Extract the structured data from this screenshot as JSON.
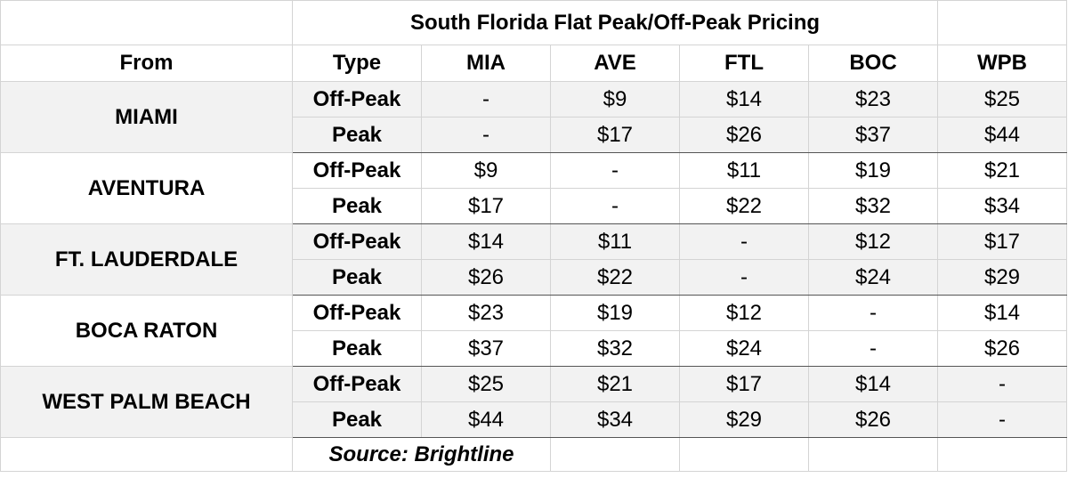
{
  "table": {
    "title": "South Florida Flat Peak/Off-Peak Pricing",
    "headers": [
      "From",
      "Type",
      "MIA",
      "AVE",
      "FTL",
      "BOC",
      "WPB"
    ],
    "groups": [
      {
        "from": "MIAMI",
        "rows": [
          {
            "type": "Off-Peak",
            "values": [
              "-",
              "$9",
              "$14",
              "$23",
              "$25"
            ]
          },
          {
            "type": "Peak",
            "values": [
              "-",
              "$17",
              "$26",
              "$37",
              "$44"
            ]
          }
        ]
      },
      {
        "from": "AVENTURA",
        "rows": [
          {
            "type": "Off-Peak",
            "values": [
              "$9",
              "-",
              "$11",
              "$19",
              "$21"
            ]
          },
          {
            "type": "Peak",
            "values": [
              "$17",
              "-",
              "$22",
              "$32",
              "$34"
            ]
          }
        ]
      },
      {
        "from": "FT. LAUDERDALE",
        "rows": [
          {
            "type": "Off-Peak",
            "values": [
              "$14",
              "$11",
              "-",
              "$12",
              "$17"
            ]
          },
          {
            "type": "Peak",
            "values": [
              "$26",
              "$22",
              "-",
              "$24",
              "$29"
            ]
          }
        ]
      },
      {
        "from": "BOCA RATON",
        "rows": [
          {
            "type": "Off-Peak",
            "values": [
              "$23",
              "$19",
              "$12",
              "-",
              "$14"
            ]
          },
          {
            "type": "Peak",
            "values": [
              "$37",
              "$32",
              "$24",
              "-",
              "$26"
            ]
          }
        ]
      },
      {
        "from": "WEST PALM BEACH",
        "rows": [
          {
            "type": "Off-Peak",
            "values": [
              "$25",
              "$21",
              "$17",
              "$14",
              "-"
            ]
          },
          {
            "type": "Peak",
            "values": [
              "$44",
              "$34",
              "$29",
              "$26",
              "-"
            ]
          }
        ]
      }
    ],
    "source": "Source: Brightline"
  }
}
